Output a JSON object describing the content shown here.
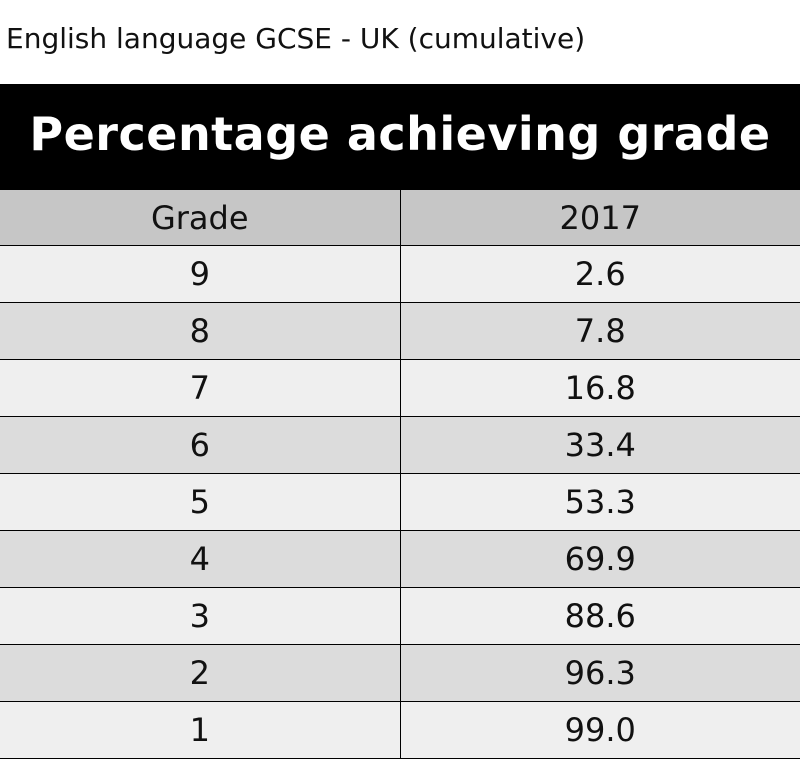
{
  "caption": "English language GCSE - UK (cumulative)",
  "colors": {
    "header_band": "#000000",
    "header_text": "#ffffff",
    "column_header_bg": "#c6c6c6",
    "row_light": "#efefef",
    "row_dark": "#dcdcdc"
  },
  "chart_data": {
    "type": "table",
    "title": "Percentage achieving grade",
    "columns": [
      "Grade",
      "2017"
    ],
    "rows": [
      [
        "9",
        "2.6"
      ],
      [
        "8",
        "7.8"
      ],
      [
        "7",
        "16.8"
      ],
      [
        "6",
        "33.4"
      ],
      [
        "5",
        "53.3"
      ],
      [
        "4",
        "69.9"
      ],
      [
        "3",
        "88.6"
      ],
      [
        "2",
        "96.3"
      ],
      [
        "1",
        "99.0"
      ]
    ]
  }
}
